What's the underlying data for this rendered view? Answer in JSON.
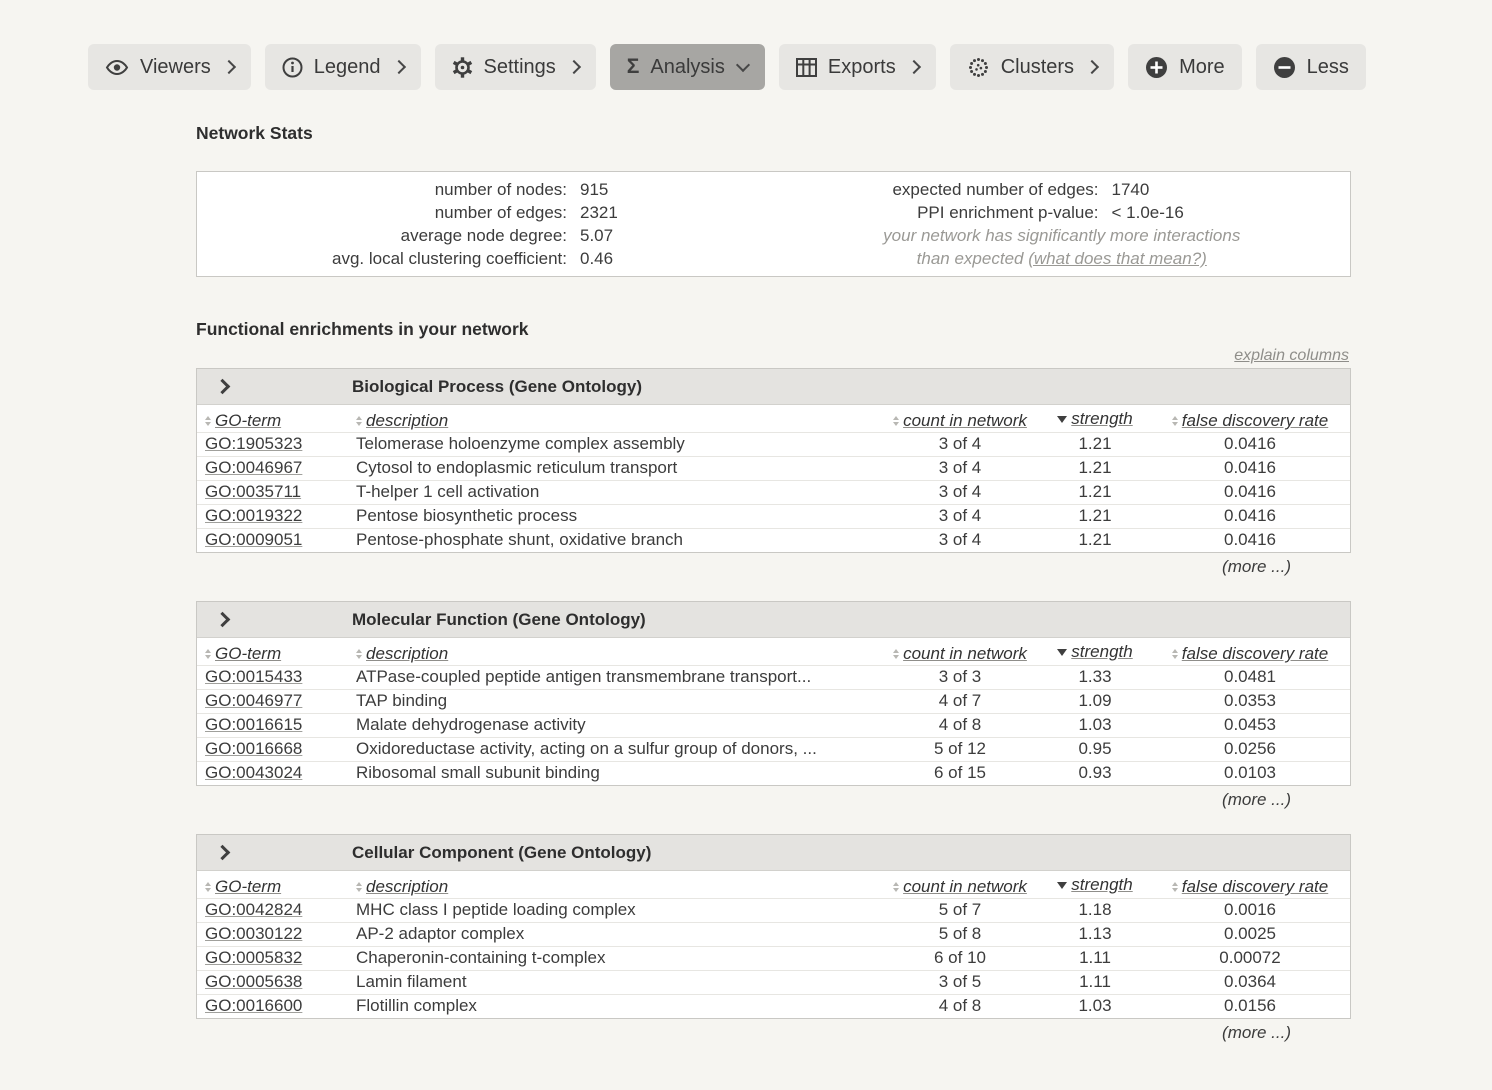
{
  "toolbar": {
    "buttons": [
      {
        "label": "Viewers",
        "icon": "eye-icon",
        "chevron": "right"
      },
      {
        "label": "Legend",
        "icon": "info-icon",
        "chevron": "right"
      },
      {
        "label": "Settings",
        "icon": "gear-icon",
        "chevron": "right"
      },
      {
        "label": "Analysis",
        "icon": "sigma-icon",
        "chevron": "down",
        "active": true
      },
      {
        "label": "Exports",
        "icon": "table-grid-icon",
        "chevron": "right"
      },
      {
        "label": "Clusters",
        "icon": "clusters-icon",
        "chevron": "right"
      },
      {
        "label": "More",
        "icon": "plus-circle-icon"
      },
      {
        "label": "Less",
        "icon": "minus-circle-icon"
      }
    ]
  },
  "network_stats": {
    "title": "Network Stats",
    "left": [
      {
        "label": "number of nodes:",
        "value": "915"
      },
      {
        "label": "number of edges:",
        "value": "2321"
      },
      {
        "label": "average node degree:",
        "value": "5.07"
      },
      {
        "label": "avg. local clustering coefficient:",
        "value": "0.46"
      }
    ],
    "right": [
      {
        "label": "expected number of edges:",
        "value": "1740"
      },
      {
        "label": "PPI enrichment p-value:",
        "value": "< 1.0e-16"
      }
    ],
    "note_line1": "your network has significantly more interactions",
    "note_line2": "than expected",
    "note_link": "(what does that mean?)"
  },
  "enrichment": {
    "title": "Functional enrichments in your network",
    "explain_link": "explain columns",
    "more_label": "(more ...)",
    "columns": [
      "GO-term",
      "description",
      "count in network",
      "strength",
      "false discovery rate"
    ],
    "sorted_column": "strength",
    "sort_direction": "desc",
    "tables": [
      {
        "header": "Biological Process (Gene Ontology)",
        "rows": [
          {
            "term": "GO:1905323",
            "description": "Telomerase holoenzyme complex assembly",
            "count": "3 of 4",
            "strength": "1.21",
            "fdr": "0.0416"
          },
          {
            "term": "GO:0046967",
            "description": "Cytosol to endoplasmic reticulum transport",
            "count": "3 of 4",
            "strength": "1.21",
            "fdr": "0.0416"
          },
          {
            "term": "GO:0035711",
            "description": "T-helper 1 cell activation",
            "count": "3 of 4",
            "strength": "1.21",
            "fdr": "0.0416"
          },
          {
            "term": "GO:0019322",
            "description": "Pentose biosynthetic process",
            "count": "3 of 4",
            "strength": "1.21",
            "fdr": "0.0416"
          },
          {
            "term": "GO:0009051",
            "description": "Pentose-phosphate shunt, oxidative branch",
            "count": "3 of 4",
            "strength": "1.21",
            "fdr": "0.0416"
          }
        ]
      },
      {
        "header": "Molecular Function (Gene Ontology)",
        "rows": [
          {
            "term": "GO:0015433",
            "description": "ATPase-coupled peptide antigen transmembrane transport...",
            "count": "3 of 3",
            "strength": "1.33",
            "fdr": "0.0481"
          },
          {
            "term": "GO:0046977",
            "description": "TAP binding",
            "count": "4 of 7",
            "strength": "1.09",
            "fdr": "0.0353"
          },
          {
            "term": "GO:0016615",
            "description": "Malate dehydrogenase activity",
            "count": "4 of 8",
            "strength": "1.03",
            "fdr": "0.0453"
          },
          {
            "term": "GO:0016668",
            "description": "Oxidoreductase activity, acting on a sulfur group of donors, ...",
            "count": "5 of 12",
            "strength": "0.95",
            "fdr": "0.0256"
          },
          {
            "term": "GO:0043024",
            "description": "Ribosomal small subunit binding",
            "count": "6 of 15",
            "strength": "0.93",
            "fdr": "0.0103"
          }
        ]
      },
      {
        "header": "Cellular Component (Gene Ontology)",
        "rows": [
          {
            "term": "GO:0042824",
            "description": "MHC class I peptide loading complex",
            "count": "5 of 7",
            "strength": "1.18",
            "fdr": "0.0016"
          },
          {
            "term": "GO:0030122",
            "description": "AP-2 adaptor complex",
            "count": "5 of 8",
            "strength": "1.13",
            "fdr": "0.0025"
          },
          {
            "term": "GO:0005832",
            "description": "Chaperonin-containing t-complex",
            "count": "6 of 10",
            "strength": "1.11",
            "fdr": "0.00072"
          },
          {
            "term": "GO:0005638",
            "description": "Lamin filament",
            "count": "3 of 5",
            "strength": "1.11",
            "fdr": "0.0364"
          },
          {
            "term": "GO:0016600",
            "description": "Flotillin complex",
            "count": "4 of 8",
            "strength": "1.03",
            "fdr": "0.0156"
          }
        ]
      }
    ]
  },
  "colors": {
    "page_bg": "#f6f5f1",
    "button_bg": "#e7e6e3",
    "button_active_bg": "#a7a6a3",
    "panel_bg": "#ffffff",
    "band_bg": "#e4e3e0",
    "border": "#c9c8c4",
    "row_line": "#e7e6e2",
    "text": "#3c3c3c",
    "muted": "#9a9995"
  }
}
